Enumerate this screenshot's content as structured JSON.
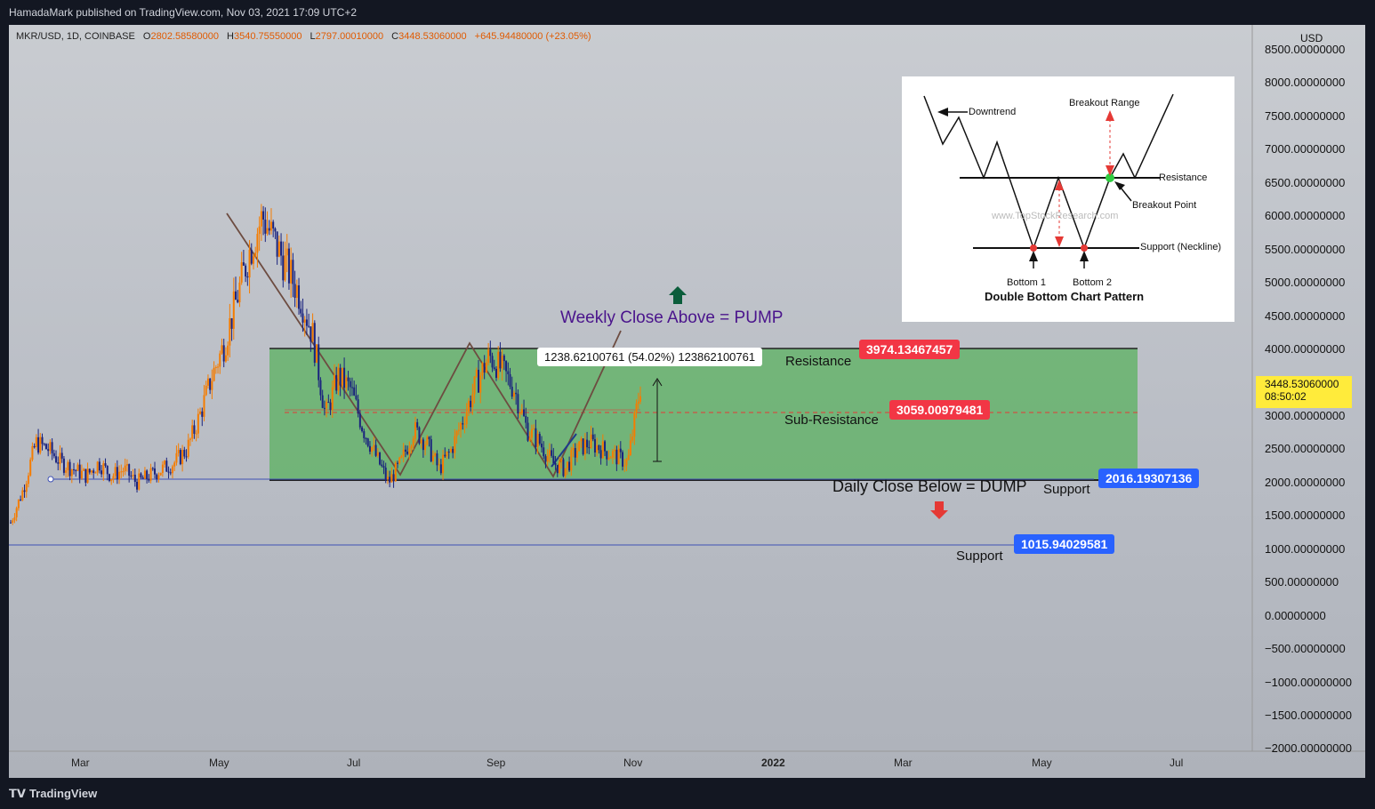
{
  "header": {
    "publisher": "HamadaMark published on TradingView.com, Nov 03, 2021 17:09 UTC+2"
  },
  "legend": {
    "symbol": "MKR/USD, 1D, COINBASE",
    "o_label": "O",
    "o_value": "2802.58580000",
    "h_label": "H",
    "h_value": "3540.75550000",
    "l_label": "L",
    "l_value": "2797.00010000",
    "c_label": "C",
    "c_value": "3448.53060000",
    "change": "+645.94480000 (+23.05%)"
  },
  "footer": {
    "brand": "TradingView"
  },
  "annotations": {
    "weekly_close": "Weekly Close Above = PUMP",
    "daily_close": "Daily Close Below = DUMP",
    "resistance": "Resistance",
    "sub_resistance": "Sub-Resistance",
    "support_upper": "Support",
    "support_lower": "Support",
    "measure": "1238.62100761 (54.02%) 123862100761"
  },
  "price_tags": {
    "resistance": "3974.13467457",
    "sub_resistance": "3059.00979481",
    "support_upper": "2016.19307136",
    "support_lower": "1015.94029581",
    "last_price": "3448.53060000",
    "countdown": "08:50:02"
  },
  "inset": {
    "downtrend": "Downtrend",
    "breakout_range": "Breakout Range",
    "resistance": "Resistance",
    "breakout_point": "Breakout Point",
    "support": "Support (Neckline)",
    "bottom1": "Bottom 1",
    "bottom2": "Bottom 2",
    "title": "Double Bottom Chart Pattern",
    "watermark": "www.TopStockResearch.com"
  },
  "colors": {
    "resistance_tag": "#f23645",
    "support_tag": "#2962ff",
    "zone": "#4caf50",
    "last_price_tag": "#ffeb3b"
  },
  "chart_data": {
    "type": "candlestick",
    "currency": "USD",
    "y_ticks": [
      "8500.00000000",
      "8000.00000000",
      "7500.00000000",
      "7000.00000000",
      "6500.00000000",
      "6000.00000000",
      "5500.00000000",
      "5000.00000000",
      "4500.00000000",
      "4000.00000000",
      "3500.00000000",
      "3000.00000000",
      "2500.00000000",
      "2000.00000000",
      "1500.00000000",
      "1000.00000000",
      "500.00000000",
      "0.00000000",
      "−500.00000000",
      "−1000.00000000",
      "−1500.00000000",
      "−2000.00000000"
    ],
    "x_ticks": [
      "Mar",
      "May",
      "Jul",
      "Sep",
      "Nov",
      "2022",
      "Mar",
      "May",
      "Jul"
    ],
    "ylim": [
      -2000,
      8500
    ],
    "levels": {
      "resistance": 3974.13467457,
      "sub_resistance": 3059.00979481,
      "support_upper": 2016.19307136,
      "support_lower": 1015.94029581
    },
    "approx_closes": [
      1400,
      1900,
      2600,
      2500,
      2300,
      2200,
      2100,
      2300,
      2100,
      2200,
      2000,
      2100,
      2200,
      2300,
      2500,
      3000,
      3600,
      4100,
      4800,
      5500,
      6000,
      5600,
      5200,
      4800,
      4200,
      3000,
      3600,
      3400,
      2800,
      2400,
      2000,
      2300,
      2800,
      2600,
      2200,
      2500,
      3000,
      3500,
      3900,
      3700,
      3400,
      2800,
      2600,
      2300,
      2200,
      2500,
      2600,
      2500,
      2400,
      2300,
      3448
    ]
  }
}
